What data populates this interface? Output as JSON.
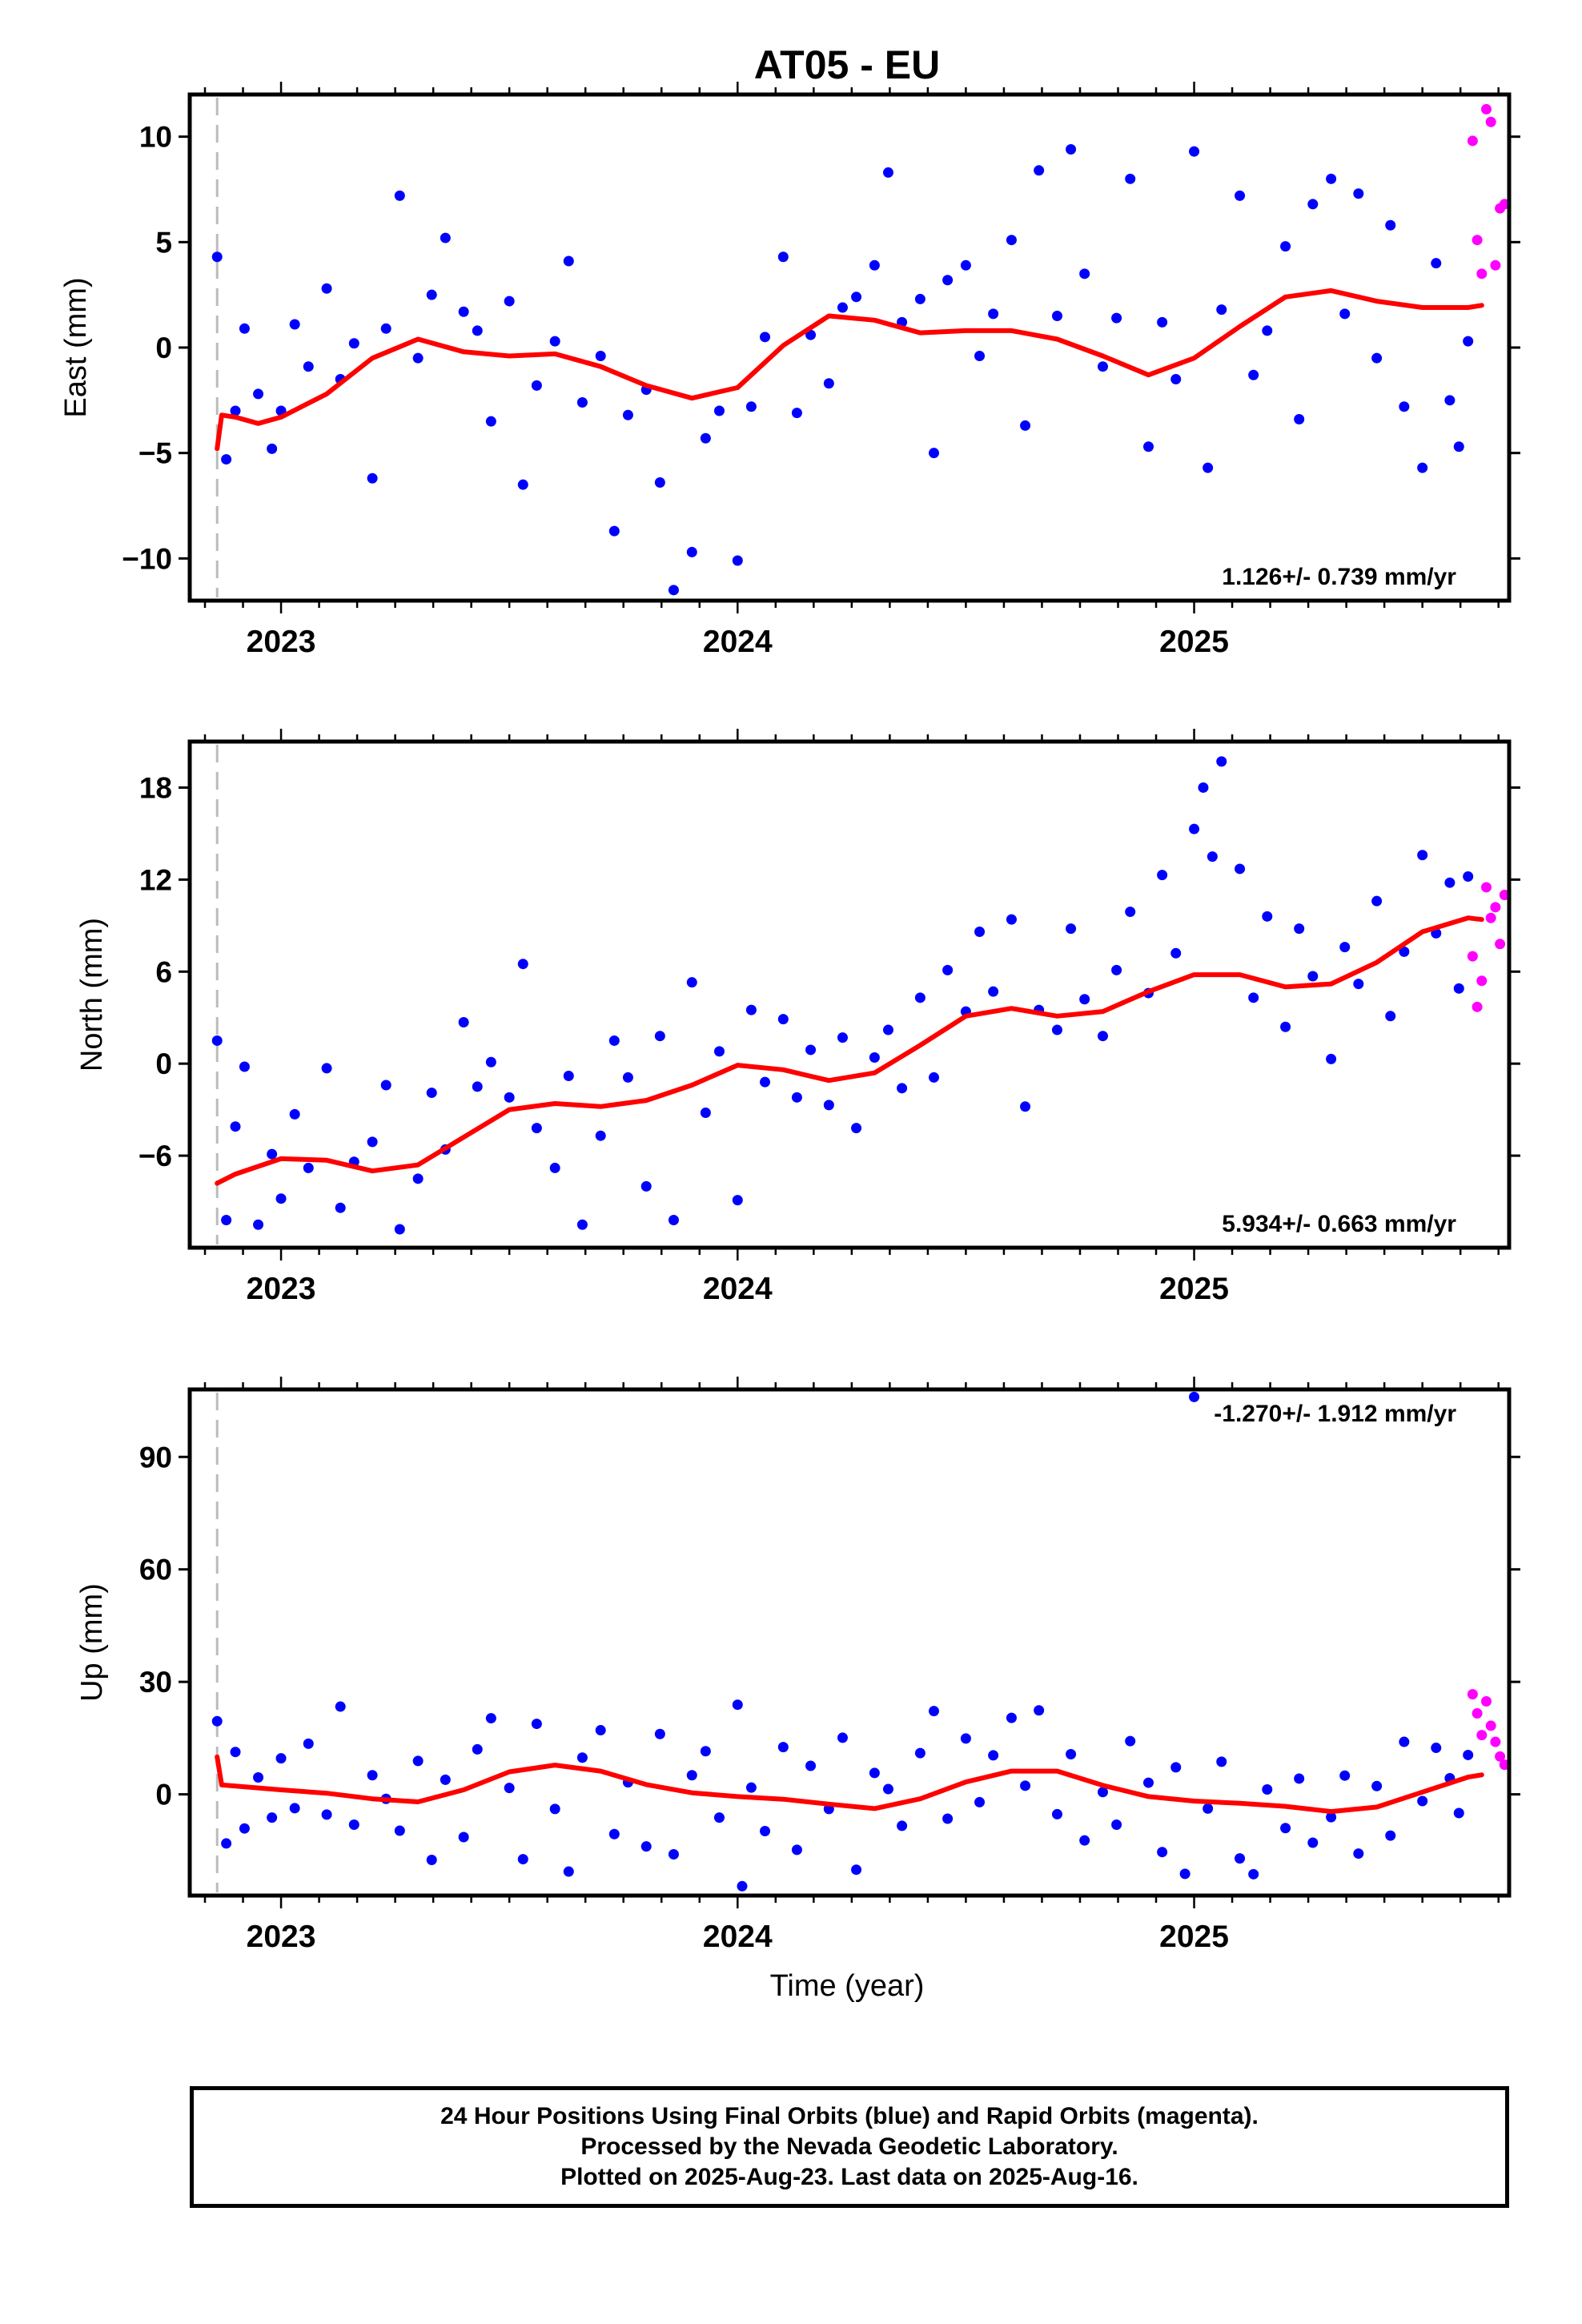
{
  "title": "AT05 - EU",
  "x_axis_label": "Time (year)",
  "footer": {
    "line1": "24 Hour Positions Using Final Orbits (blue) and Rapid Orbits (magenta).",
    "line2": "Processed by the Nevada Geodetic Laboratory.",
    "line3": "Plotted on 2025-Aug-23. Last data on 2025-Aug-16."
  },
  "colors": {
    "final_orbits": "#0000ff",
    "rapid_orbits": "#ff00ff",
    "model": "#ff0000",
    "start_marker": "#bbbbbb",
    "frame": "#000000"
  },
  "chart_data": [
    {
      "type": "scatter",
      "name_panel": "East",
      "ylabel": "East (mm)",
      "xlim": [
        2022.8,
        2025.69
      ],
      "ylim": [
        -12,
        12
      ],
      "yticks": [
        -10,
        -5,
        0,
        5,
        10
      ],
      "xticks": [
        2023,
        2024,
        2025
      ],
      "xtick_labels": [
        "2023",
        "2024",
        "2025"
      ],
      "rate_text": "1.126+/- 0.739 mm/yr",
      "start_marker_x": 2022.86,
      "model_curve": {
        "x": [
          2022.86,
          2022.87,
          2022.9,
          2022.95,
          2023.0,
          2023.1,
          2023.2,
          2023.3,
          2023.4,
          2023.5,
          2023.6,
          2023.7,
          2023.8,
          2023.9,
          2024.0,
          2024.1,
          2024.2,
          2024.3,
          2024.4,
          2024.5,
          2024.6,
          2024.7,
          2024.8,
          2024.9,
          2025.0,
          2025.1,
          2025.2,
          2025.3,
          2025.4,
          2025.5,
          2025.6,
          2025.63
        ],
        "y": [
          -4.8,
          -3.2,
          -3.3,
          -3.6,
          -3.3,
          -2.2,
          -0.5,
          0.4,
          -0.2,
          -0.4,
          -0.3,
          -0.9,
          -1.8,
          -2.4,
          -1.9,
          0.1,
          1.5,
          1.3,
          0.7,
          0.8,
          0.8,
          0.4,
          -0.4,
          -1.3,
          -0.5,
          1.0,
          2.4,
          2.7,
          2.2,
          1.9,
          1.9,
          2.0
        ]
      },
      "final_orbits_points": {
        "x": [
          2022.86,
          2022.88,
          2022.9,
          2022.92,
          2022.95,
          2022.98,
          2023.0,
          2023.03,
          2023.06,
          2023.1,
          2023.13,
          2023.16,
          2023.2,
          2023.23,
          2023.26,
          2023.3,
          2023.33,
          2023.36,
          2023.4,
          2023.43,
          2023.46,
          2023.5,
          2023.53,
          2023.56,
          2023.6,
          2023.63,
          2023.66,
          2023.7,
          2023.73,
          2023.76,
          2023.8,
          2023.83,
          2023.86,
          2023.9,
          2023.93,
          2023.96,
          2024.0,
          2024.03,
          2024.06,
          2024.1,
          2024.13,
          2024.16,
          2024.2,
          2024.23,
          2024.26,
          2024.3,
          2024.33,
          2024.36,
          2024.4,
          2024.43,
          2024.46,
          2024.5,
          2024.53,
          2024.56,
          2024.6,
          2024.63,
          2024.66,
          2024.7,
          2024.73,
          2024.76,
          2024.8,
          2024.83,
          2024.86,
          2024.9,
          2024.93,
          2024.96,
          2025.0,
          2025.03,
          2025.06,
          2025.1,
          2025.13,
          2025.16,
          2025.2,
          2025.23,
          2025.26,
          2025.3,
          2025.33,
          2025.36,
          2025.4,
          2025.43,
          2025.46,
          2025.5,
          2025.53,
          2025.56,
          2025.58,
          2025.6
        ],
        "y": [
          4.3,
          -5.3,
          -3.0,
          0.9,
          -2.2,
          -4.8,
          -3.0,
          1.1,
          -0.9,
          2.8,
          -1.5,
          0.2,
          -6.2,
          0.9,
          7.2,
          -0.5,
          2.5,
          5.2,
          1.7,
          0.8,
          -3.5,
          2.2,
          -6.5,
          -1.8,
          0.3,
          4.1,
          -2.6,
          -0.4,
          -8.7,
          -3.2,
          -2.0,
          -6.4,
          -11.5,
          -9.7,
          -4.3,
          -3.0,
          -10.1,
          -2.8,
          0.5,
          4.3,
          -3.1,
          0.6,
          -1.7,
          1.9,
          2.4,
          3.9,
          8.3,
          1.2,
          2.3,
          -5.0,
          3.2,
          3.9,
          -0.4,
          1.6,
          5.1,
          -3.7,
          8.4,
          1.5,
          9.4,
          3.5,
          -0.9,
          1.4,
          8.0,
          -4.7,
          1.2,
          -1.5,
          9.3,
          -5.7,
          1.8,
          7.2,
          -1.3,
          0.8,
          4.8,
          -3.4,
          6.8,
          8.0,
          1.6,
          7.3,
          -0.5,
          5.8,
          -2.8,
          -5.7,
          4.0,
          -2.5,
          -4.7,
          0.3
        ]
      },
      "rapid_orbits_points": {
        "x": [
          2025.61,
          2025.62,
          2025.63,
          2025.64,
          2025.65,
          2025.66,
          2025.67,
          2025.68
        ],
        "y": [
          9.8,
          5.1,
          3.5,
          11.3,
          10.7,
          3.9,
          6.6,
          6.8
        ]
      }
    },
    {
      "type": "scatter",
      "name_panel": "North",
      "ylabel": "North (mm)",
      "xlim": [
        2022.8,
        2025.69
      ],
      "ylim": [
        -12,
        21
      ],
      "yticks": [
        -6,
        0,
        6,
        12,
        18
      ],
      "xticks": [
        2023,
        2024,
        2025
      ],
      "xtick_labels": [
        "2023",
        "2024",
        "2025"
      ],
      "rate_text": "5.934+/- 0.663 mm/yr",
      "start_marker_x": 2022.86,
      "model_curve": {
        "x": [
          2022.86,
          2022.9,
          2023.0,
          2023.1,
          2023.2,
          2023.3,
          2023.4,
          2023.5,
          2023.6,
          2023.7,
          2023.8,
          2023.9,
          2024.0,
          2024.1,
          2024.2,
          2024.3,
          2024.4,
          2024.5,
          2024.6,
          2024.7,
          2024.8,
          2024.9,
          2025.0,
          2025.1,
          2025.2,
          2025.3,
          2025.4,
          2025.5,
          2025.6,
          2025.63
        ],
        "y": [
          -7.8,
          -7.2,
          -6.2,
          -6.3,
          -7.0,
          -6.6,
          -4.8,
          -3.0,
          -2.6,
          -2.8,
          -2.4,
          -1.4,
          -0.1,
          -0.4,
          -1.1,
          -0.6,
          1.2,
          3.1,
          3.6,
          3.1,
          3.4,
          4.7,
          5.8,
          5.8,
          5.0,
          5.2,
          6.6,
          8.6,
          9.5,
          9.4
        ]
      },
      "final_orbits_points": {
        "x": [
          2022.86,
          2022.88,
          2022.9,
          2022.92,
          2022.95,
          2022.98,
          2023.0,
          2023.03,
          2023.06,
          2023.1,
          2023.13,
          2023.16,
          2023.2,
          2023.23,
          2023.26,
          2023.3,
          2023.33,
          2023.36,
          2023.4,
          2023.43,
          2023.46,
          2023.5,
          2023.53,
          2023.56,
          2023.6,
          2023.63,
          2023.66,
          2023.7,
          2023.73,
          2023.76,
          2023.8,
          2023.83,
          2023.86,
          2023.9,
          2023.93,
          2023.96,
          2024.0,
          2024.03,
          2024.06,
          2024.1,
          2024.13,
          2024.16,
          2024.2,
          2024.23,
          2024.26,
          2024.3,
          2024.33,
          2024.36,
          2024.4,
          2024.43,
          2024.46,
          2024.5,
          2024.53,
          2024.56,
          2024.6,
          2024.63,
          2024.66,
          2024.7,
          2024.73,
          2024.76,
          2024.8,
          2024.83,
          2024.86,
          2024.9,
          2024.93,
          2024.96,
          2025.0,
          2025.02,
          2025.04,
          2025.06,
          2025.1,
          2025.13,
          2025.16,
          2025.2,
          2025.23,
          2025.26,
          2025.3,
          2025.33,
          2025.36,
          2025.4,
          2025.43,
          2025.46,
          2025.5,
          2025.53,
          2025.56,
          2025.58,
          2025.6
        ],
        "y": [
          1.5,
          -10.2,
          -4.1,
          -0.2,
          -10.5,
          -5.9,
          -8.8,
          -3.3,
          -6.8,
          -0.3,
          -9.4,
          -6.4,
          -5.1,
          -1.4,
          -10.8,
          -7.5,
          -1.9,
          -5.6,
          2.7,
          -1.5,
          0.1,
          -2.2,
          6.5,
          -4.2,
          -6.8,
          -0.8,
          -10.5,
          -4.7,
          1.5,
          -0.9,
          -8.0,
          1.8,
          -10.2,
          5.3,
          -3.2,
          0.8,
          -8.9,
          3.5,
          -1.2,
          2.9,
          -2.2,
          0.9,
          -2.7,
          1.7,
          -4.2,
          0.4,
          2.2,
          -1.6,
          4.3,
          -0.9,
          6.1,
          3.4,
          8.6,
          4.7,
          9.4,
          -2.8,
          3.5,
          2.2,
          8.8,
          4.2,
          1.8,
          6.1,
          9.9,
          4.6,
          12.3,
          7.2,
          15.3,
          18.0,
          13.5,
          19.7,
          12.7,
          4.3,
          9.6,
          2.4,
          8.8,
          5.7,
          0.3,
          7.6,
          5.2,
          10.6,
          3.1,
          7.3,
          13.6,
          8.5,
          11.8,
          4.9,
          12.2
        ]
      },
      "rapid_orbits_points": {
        "x": [
          2025.61,
          2025.62,
          2025.63,
          2025.64,
          2025.65,
          2025.66,
          2025.67,
          2025.68
        ],
        "y": [
          7.0,
          3.7,
          5.4,
          11.5,
          9.5,
          10.2,
          7.8,
          11.0
        ]
      }
    },
    {
      "type": "scatter",
      "name_panel": "Up",
      "ylabel": "Up (mm)",
      "xlim": [
        2022.8,
        2025.69
      ],
      "ylim": [
        -27,
        108
      ],
      "yticks": [
        0,
        30,
        60,
        90
      ],
      "xticks": [
        2023,
        2024,
        2025
      ],
      "xtick_labels": [
        "2023",
        "2024",
        "2025"
      ],
      "rate_text": "-1.270+/- 1.912 mm/yr",
      "start_marker_x": 2022.86,
      "model_curve": {
        "x": [
          2022.86,
          2022.87,
          2022.9,
          2023.0,
          2023.1,
          2023.2,
          2023.3,
          2023.4,
          2023.5,
          2023.6,
          2023.7,
          2023.8,
          2023.9,
          2024.0,
          2024.1,
          2024.2,
          2024.3,
          2024.4,
          2024.5,
          2024.6,
          2024.7,
          2024.8,
          2024.9,
          2025.0,
          2025.1,
          2025.2,
          2025.3,
          2025.4,
          2025.5,
          2025.6,
          2025.63
        ],
        "y": [
          10.0,
          2.5,
          2.2,
          1.2,
          0.3,
          -1.2,
          -2.0,
          1.2,
          6.0,
          7.8,
          6.2,
          2.6,
          0.4,
          -0.6,
          -1.3,
          -2.6,
          -3.8,
          -1.2,
          3.3,
          6.2,
          6.2,
          2.4,
          -0.6,
          -1.8,
          -2.4,
          -3.2,
          -4.6,
          -3.4,
          0.6,
          4.6,
          5.2
        ]
      },
      "final_orbits_points": {
        "x": [
          2022.86,
          2022.88,
          2022.9,
          2022.92,
          2022.95,
          2022.98,
          2023.0,
          2023.03,
          2023.06,
          2023.1,
          2023.13,
          2023.16,
          2023.2,
          2023.23,
          2023.26,
          2023.3,
          2023.33,
          2023.36,
          2023.4,
          2023.43,
          2023.46,
          2023.5,
          2023.53,
          2023.56,
          2023.6,
          2023.63,
          2023.66,
          2023.7,
          2023.73,
          2023.76,
          2023.8,
          2023.83,
          2023.86,
          2023.9,
          2023.93,
          2023.96,
          2024.0,
          2024.01,
          2024.03,
          2024.06,
          2024.1,
          2024.13,
          2024.16,
          2024.2,
          2024.23,
          2024.26,
          2024.3,
          2024.33,
          2024.36,
          2024.4,
          2024.43,
          2024.46,
          2024.5,
          2024.53,
          2024.56,
          2024.6,
          2024.63,
          2024.66,
          2024.7,
          2024.73,
          2024.76,
          2024.8,
          2024.83,
          2024.86,
          2024.9,
          2024.93,
          2024.96,
          2024.98,
          2025.0,
          2025.03,
          2025.06,
          2025.1,
          2025.13,
          2025.16,
          2025.2,
          2025.23,
          2025.26,
          2025.3,
          2025.33,
          2025.36,
          2025.4,
          2025.43,
          2025.46,
          2025.5,
          2025.53,
          2025.56,
          2025.58,
          2025.6
        ],
        "y": [
          19.5,
          -13.1,
          11.3,
          -9.1,
          4.5,
          -6.2,
          9.6,
          -3.7,
          13.5,
          -5.4,
          23.4,
          -8.1,
          5.1,
          -1.2,
          -9.7,
          8.9,
          -17.5,
          3.9,
          -11.4,
          12.0,
          20.3,
          1.7,
          -17.3,
          18.8,
          -3.9,
          -20.6,
          9.8,
          17.1,
          -10.6,
          3.2,
          -13.9,
          16.1,
          -16.0,
          5.1,
          11.5,
          -6.2,
          23.9,
          -24.5,
          1.8,
          -9.8,
          12.6,
          -14.8,
          7.6,
          -3.9,
          15.1,
          -20.1,
          5.7,
          1.4,
          -8.4,
          11.0,
          22.2,
          -6.5,
          14.9,
          -2.1,
          10.4,
          20.4,
          2.3,
          22.4,
          -5.3,
          10.7,
          -12.3,
          0.6,
          -8.1,
          14.2,
          3.1,
          -15.4,
          7.2,
          -21.2,
          106.0,
          -3.8,
          8.7,
          -17.1,
          -21.3,
          1.3,
          -9.0,
          4.2,
          -12.9,
          -6.1,
          5.0,
          -15.8,
          2.2,
          -11.0,
          14.0,
          -1.8,
          12.4,
          4.3,
          -5.0,
          10.5
        ]
      },
      "rapid_orbits_points": {
        "x": [
          2025.61,
          2025.62,
          2025.63,
          2025.64,
          2025.65,
          2025.66,
          2025.67,
          2025.68
        ],
        "y": [
          26.7,
          21.6,
          15.8,
          24.8,
          18.3,
          14.0,
          10.1,
          7.9
        ]
      }
    }
  ]
}
